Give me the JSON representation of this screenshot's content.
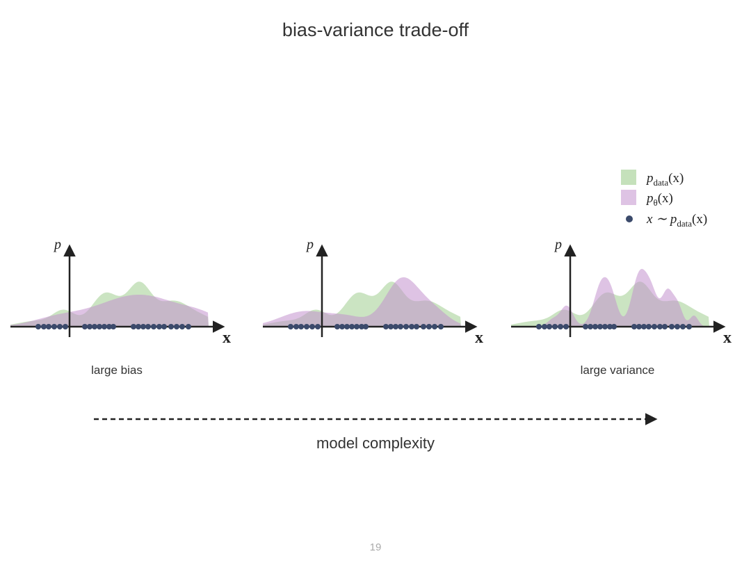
{
  "title": "bias-variance trade-off",
  "legend": [
    {
      "main": "p",
      "sub": "data",
      "tail": "(x)"
    },
    {
      "main": "p",
      "sub": "θ",
      "tail": "(x)"
    },
    {
      "main": "x ∼ p",
      "sub": "data",
      "tail": "(x)"
    }
  ],
  "panels": [
    {
      "y_label": "p",
      "x_label": "x",
      "caption": "large bias"
    },
    {
      "y_label": "p",
      "x_label": "x"
    },
    {
      "y_label": "p",
      "x_label": "x",
      "caption": "large variance"
    }
  ],
  "arrow_label": "model complexity",
  "page_number": "19"
}
